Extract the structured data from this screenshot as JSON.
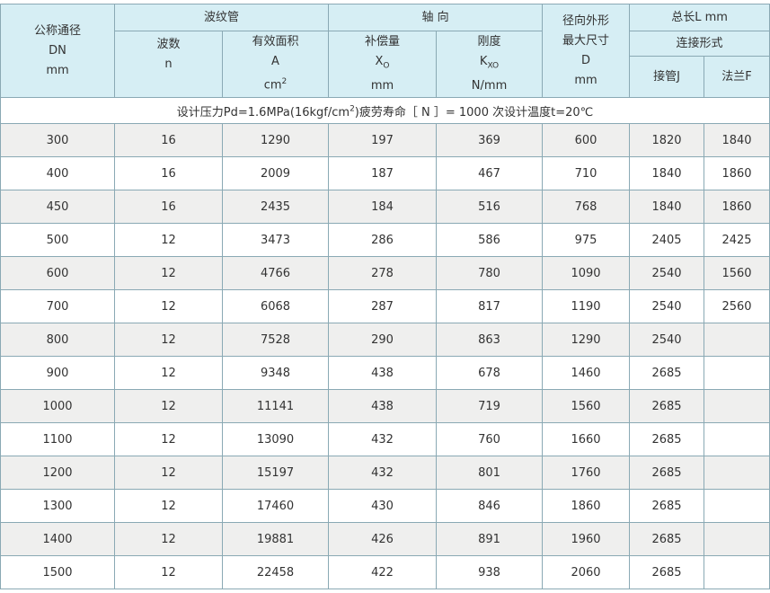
{
  "header": {
    "dn": [
      "公称通径",
      "DN",
      "mm"
    ],
    "bellows": "波纹管",
    "waves": [
      "波数",
      "n"
    ],
    "area": [
      "有效面积",
      "A",
      "cm",
      "2"
    ],
    "axial": "轴 向",
    "comp": [
      "补偿量",
      "X",
      "O",
      "mm"
    ],
    "stiff": [
      "刚度",
      "K",
      "XO",
      "N/mm"
    ],
    "radial": [
      "径向外形",
      "最大尺寸",
      "D",
      "mm"
    ],
    "total": "总长L mm",
    "conn": "连接形式",
    "pipe": "接管J",
    "flange": "法兰F"
  },
  "note": {
    "a": "设计压力Pd=1.6MPa(16kgf/cm",
    "sup": "2",
    "b": ")疲劳寿命［ N ］= 1000 次设计温度t=20℃"
  },
  "rows": [
    [
      "300",
      "16",
      "1290",
      "197",
      "369",
      "600",
      "1820",
      "1840"
    ],
    [
      "400",
      "16",
      "2009",
      "187",
      "467",
      "710",
      "1840",
      "1860"
    ],
    [
      "450",
      "16",
      "2435",
      "184",
      "516",
      "768",
      "1840",
      "1860"
    ],
    [
      "500",
      "12",
      "3473",
      "286",
      "586",
      "975",
      "2405",
      "2425"
    ],
    [
      "600",
      "12",
      "4766",
      "278",
      "780",
      "1090",
      "2540",
      "1560"
    ],
    [
      "700",
      "12",
      "6068",
      "287",
      "817",
      "1190",
      "2540",
      "2560"
    ],
    [
      "800",
      "12",
      "7528",
      "290",
      "863",
      "1290",
      "2540",
      ""
    ],
    [
      "900",
      "12",
      "9348",
      "438",
      "678",
      "1460",
      "2685",
      ""
    ],
    [
      "1000",
      "12",
      "11141",
      "438",
      "719",
      "1560",
      "2685",
      ""
    ],
    [
      "1100",
      "12",
      "13090",
      "432",
      "760",
      "1660",
      "2685",
      ""
    ],
    [
      "1200",
      "12",
      "15197",
      "432",
      "801",
      "1760",
      "2685",
      ""
    ],
    [
      "1300",
      "12",
      "17460",
      "430",
      "846",
      "1860",
      "2685",
      ""
    ],
    [
      "1400",
      "12",
      "19881",
      "426",
      "891",
      "1960",
      "2685",
      ""
    ],
    [
      "1500",
      "12",
      "22458",
      "422",
      "938",
      "2060",
      "2685",
      ""
    ]
  ]
}
